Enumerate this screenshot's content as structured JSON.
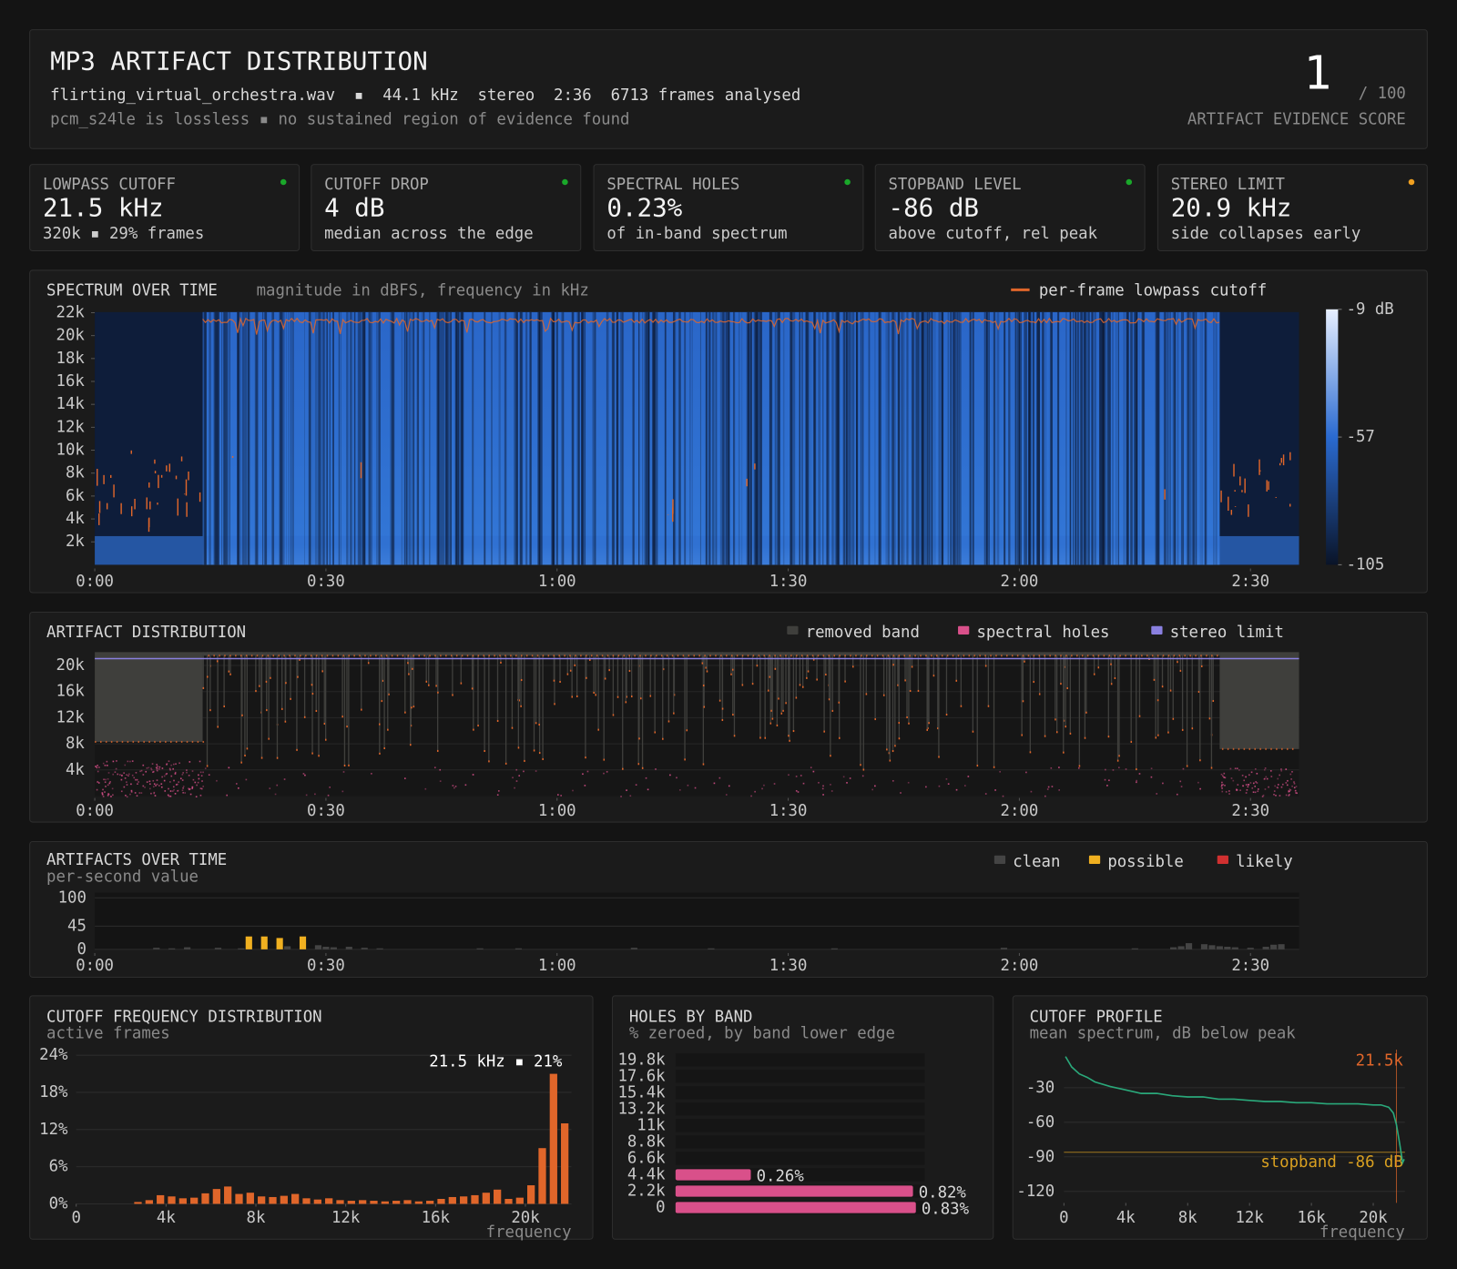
{
  "header": {
    "title": "MP3 ARTIFACT DISTRIBUTION",
    "info": "flirting_virtual_orchestra.wav  ▪  44.1 kHz  stereo  2:36  6713 frames analysed",
    "note": "pcm_s24le is lossless ▪ no sustained region of evidence found"
  },
  "score": {
    "value": 1,
    "out_of": "/ 100",
    "label": "ARTIFACT EVIDENCE SCORE"
  },
  "cards": [
    {
      "label": "LOWPASS CUTOFF",
      "value": "21.5 kHz",
      "detail": "320k ▪ 29% frames",
      "color": "#1aa82a"
    },
    {
      "label": "CUTOFF DROP",
      "value": "4 dB",
      "detail": "median across the edge",
      "color": "#1aa82a"
    },
    {
      "label": "SPECTRAL HOLES",
      "value": "0.23%",
      "detail": "of in-band spectrum",
      "color": "#1aa82a"
    },
    {
      "label": "STOPBAND LEVEL",
      "value": "-86 dB",
      "detail": "above cutoff, rel peak",
      "color": "#1aa82a"
    },
    {
      "label": "STEREO LIMIT",
      "value": "20.9 kHz",
      "detail": "side collapses early",
      "color": "#f0a020"
    }
  ],
  "chart_data": [
    {
      "type": "spectrogram",
      "title": "SPECTRUM OVER TIME",
      "subtitle": "magnitude in dBFS, frequency in kHz",
      "legend": [
        {
          "name": "per-frame lowpass cutoff",
          "color": "#e0662a"
        }
      ],
      "xlim": [
        0,
        156.3
      ],
      "xticks": [
        {
          "value": 0,
          "label": "0:00"
        },
        {
          "value": 30,
          "label": "0:30"
        },
        {
          "value": 60,
          "label": "1:00"
        },
        {
          "value": 90,
          "label": "1:30"
        },
        {
          "value": 120,
          "label": "2:00"
        },
        {
          "value": 150,
          "label": "2:30"
        }
      ],
      "ylim": [
        0,
        22050
      ],
      "yticks": [
        {
          "value": 2000,
          "label": "2k"
        },
        {
          "value": 4000,
          "label": "4k"
        },
        {
          "value": 6000,
          "label": "6k"
        },
        {
          "value": 8000,
          "label": "8k"
        },
        {
          "value": 10000,
          "label": "10k"
        },
        {
          "value": 12000,
          "label": "12k"
        },
        {
          "value": 14000,
          "label": "14k"
        },
        {
          "value": 16000,
          "label": "16k"
        },
        {
          "value": 18000,
          "label": "18k"
        },
        {
          "value": 20000,
          "label": "20k"
        },
        {
          "value": 22000,
          "label": "22k"
        }
      ],
      "zlim": [
        -105,
        -9
      ],
      "zticks": [
        {
          "value": -9,
          "label": "-9 dB"
        },
        -57,
        -105
      ]
    },
    {
      "type": "band",
      "title": "ARTIFACT DISTRIBUTION",
      "series": [
        {
          "name": "removed band",
          "color": "#3f3f3c"
        },
        {
          "name": "spectral holes",
          "color": "#d9508a"
        },
        {
          "name": "stereo limit",
          "color": "#8a80e0"
        }
      ],
      "xlim": [
        0,
        156.3
      ],
      "xticks": [
        {
          "value": 0,
          "label": "0:00"
        },
        {
          "value": 30,
          "label": "0:30"
        },
        {
          "value": 60,
          "label": "1:00"
        },
        {
          "value": 90,
          "label": "1:30"
        },
        {
          "value": 120,
          "label": "2:00"
        },
        {
          "value": 150,
          "label": "2:30"
        }
      ],
      "ylim": [
        0,
        22050
      ],
      "yticks": [
        {
          "value": 4000,
          "label": "4k"
        },
        {
          "value": 8000,
          "label": "8k"
        },
        {
          "value": 12000,
          "label": "12k"
        },
        {
          "value": 16000,
          "label": "16k"
        },
        {
          "value": 20000,
          "label": "20k"
        }
      ]
    },
    {
      "type": "bar",
      "title": "ARTIFACTS OVER TIME",
      "subtitle": "per-second value",
      "series": [
        {
          "name": "clean",
          "color": "#444444",
          "x": [
            8,
            10,
            12,
            16,
            19,
            25,
            29,
            30,
            31,
            33,
            35,
            37,
            50,
            55,
            70,
            80,
            96,
            118,
            135,
            140,
            141,
            142,
            144,
            145,
            146,
            147,
            148,
            150,
            152,
            153,
            154
          ],
          "values": [
            3,
            2,
            4,
            3,
            2,
            6,
            8,
            5,
            4,
            5,
            3,
            2,
            2,
            2,
            3,
            2,
            2,
            3,
            2,
            4,
            6,
            12,
            10,
            8,
            6,
            5,
            4,
            3,
            5,
            9,
            10
          ]
        },
        {
          "name": "possible",
          "color": "#f0b020",
          "x": [
            20,
            22,
            24,
            27
          ],
          "values": [
            25,
            25,
            22,
            25
          ]
        },
        {
          "name": "likely",
          "color": "#d03030",
          "x": [],
          "values": []
        }
      ],
      "xlim": [
        0,
        156.3
      ],
      "xticks": [
        {
          "value": 0,
          "label": "0:00"
        },
        {
          "value": 30,
          "label": "0:30"
        },
        {
          "value": 60,
          "label": "1:00"
        },
        {
          "value": 90,
          "label": "1:30"
        },
        {
          "value": 120,
          "label": "2:00"
        },
        {
          "value": 150,
          "label": "2:30"
        }
      ],
      "ylim": [
        0,
        110
      ],
      "yticks": [
        0,
        45,
        100
      ]
    },
    {
      "type": "histogram",
      "title": "CUTOFF FREQUENCY DISTRIBUTION",
      "subtitle": "active frames",
      "xlabel": "frequency",
      "color": "#e0662a",
      "annotation": "21.5 kHz ▪ 21%",
      "bins": [
        2500,
        3000,
        3500,
        4000,
        4500,
        5000,
        5500,
        6000,
        6500,
        7000,
        7500,
        8000,
        8500,
        9000,
        9500,
        10000,
        10500,
        11000,
        11500,
        12000,
        12500,
        13000,
        13500,
        14000,
        14500,
        15000,
        15500,
        16000,
        16500,
        17000,
        17500,
        18000,
        18500,
        19000,
        19500,
        20000,
        20500,
        21000,
        21500,
        22000
      ],
      "values": [
        0.3,
        0.6,
        1.4,
        1.2,
        0.9,
        1.0,
        1.7,
        2.4,
        2.8,
        1.6,
        1.8,
        1.2,
        1.1,
        1.3,
        1.6,
        0.9,
        0.7,
        0.9,
        0.6,
        0.5,
        0.6,
        0.5,
        0.4,
        0.5,
        0.6,
        0.4,
        0.5,
        0.8,
        1.1,
        1.2,
        1.4,
        1.8,
        2.3,
        0.8,
        1.0,
        3.0,
        9.0,
        21.0,
        13.0
      ],
      "xlim": [
        0,
        22050
      ],
      "xticks": [
        0,
        {
          "value": 4000,
          "label": "4k"
        },
        {
          "value": 8000,
          "label": "8k"
        },
        {
          "value": 12000,
          "label": "12k"
        },
        {
          "value": 16000,
          "label": "16k"
        },
        {
          "value": 20000,
          "label": "20k"
        }
      ],
      "ylim": [
        0,
        24
      ],
      "yticks": [
        {
          "value": 0,
          "label": "0%"
        },
        {
          "value": 6,
          "label": "6%"
        },
        {
          "value": 12,
          "label": "12%"
        },
        {
          "value": 18,
          "label": "18%"
        },
        {
          "value": 24,
          "label": "24%"
        }
      ]
    },
    {
      "type": "barh",
      "title": "HOLES BY BAND",
      "subtitle": "% zeroed, by band lower edge",
      "color": "#d9508a",
      "categories": [
        "0",
        "2.2k",
        "4.4k",
        "6.6k",
        "8.8k",
        "11k",
        "13.2k",
        "15.4k",
        "17.6k",
        "19.8k"
      ],
      "values": [
        0.83,
        0.82,
        0.26,
        0,
        0,
        0,
        0,
        0,
        0,
        0
      ],
      "value_labels": [
        "0.83%",
        "0.82%",
        "0.26%",
        null,
        null,
        null,
        null,
        null,
        null,
        null
      ],
      "xlim": [
        0,
        0.86
      ]
    },
    {
      "type": "line",
      "title": "CUTOFF PROFILE",
      "subtitle": "mean spectrum, dB below peak",
      "xlabel": "frequency",
      "color": "#2aa87a",
      "x": [
        100,
        500,
        1000,
        1500,
        2000,
        3000,
        4000,
        5000,
        6000,
        7000,
        8000,
        9000,
        10000,
        11000,
        12000,
        13000,
        14000,
        15000,
        16000,
        17000,
        18000,
        19000,
        20000,
        20500,
        21000,
        21300,
        21500,
        21700,
        21900,
        22000
      ],
      "values": [
        -3,
        -12,
        -18,
        -21,
        -25,
        -29,
        -32,
        -35,
        -35,
        -37,
        -38,
        -38,
        -40,
        -40,
        -41,
        -42,
        -42,
        -43,
        -43,
        -44,
        -44,
        -44,
        -45,
        -45,
        -47,
        -52,
        -62,
        -78,
        -95,
        -92
      ],
      "cutoff": {
        "value": 21500,
        "label": "21.5k",
        "color": "#e0662a"
      },
      "stopband": {
        "value": -86,
        "label": "stopband -86 dB",
        "color": "#d9a020"
      },
      "xlim": [
        0,
        22050
      ],
      "xticks": [
        0,
        {
          "value": 4000,
          "label": "4k"
        },
        {
          "value": 8000,
          "label": "8k"
        },
        {
          "value": 12000,
          "label": "12k"
        },
        {
          "value": 16000,
          "label": "16k"
        },
        {
          "value": 20000,
          "label": "20k"
        }
      ],
      "ylim": [
        -130,
        3
      ],
      "yticks": [
        -30,
        -60,
        -90,
        -120
      ]
    }
  ]
}
